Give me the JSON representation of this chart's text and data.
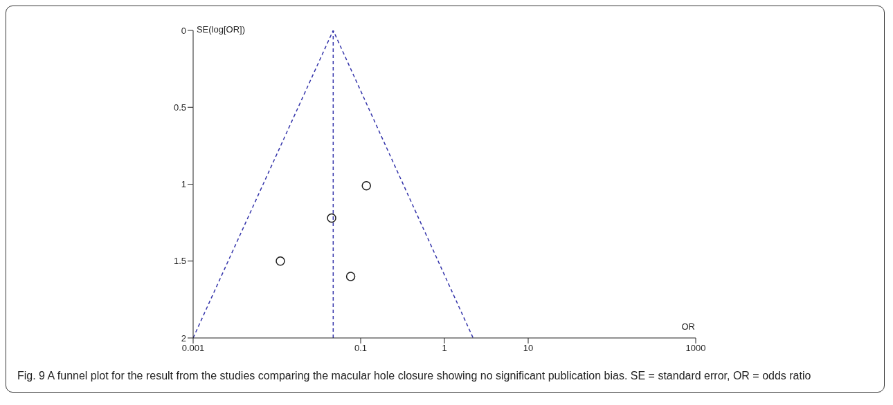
{
  "chart_data": {
    "type": "scatter",
    "xlabel": "OR",
    "ylabel": "SE(log[OR])",
    "log": "x",
    "xlim": [
      0.001,
      1000
    ],
    "xticks": [
      0.001,
      0.1,
      1,
      10,
      1000
    ],
    "ylim": [
      2,
      0
    ],
    "yticks": [
      0,
      0.5,
      1,
      1.5,
      2
    ],
    "series": [
      {
        "type": "line",
        "color": "#3333aa",
        "x": [
          0.001,
          0.047,
          2.2
        ],
        "values": [
          2,
          0,
          2
        ],
        "line_style": "dashed",
        "marker": "none"
      },
      {
        "color": "#1a1a1a",
        "x": [
          0.117,
          0.045,
          0.011,
          0.076
        ],
        "values": [
          1.01,
          1.22,
          1.5,
          1.6
        ],
        "marker": "circle"
      }
    ],
    "ref_lines": [
      {
        "axis": "x",
        "value": 0.047,
        "color": "#3333aa",
        "line_style": "dashed"
      }
    ],
    "annotations": [
      "Fig. 9 A funnel plot for the result from the studies comparing the macular hole closure showing no significant publication bias. SE = standard error, OR = odds ratio"
    ]
  }
}
